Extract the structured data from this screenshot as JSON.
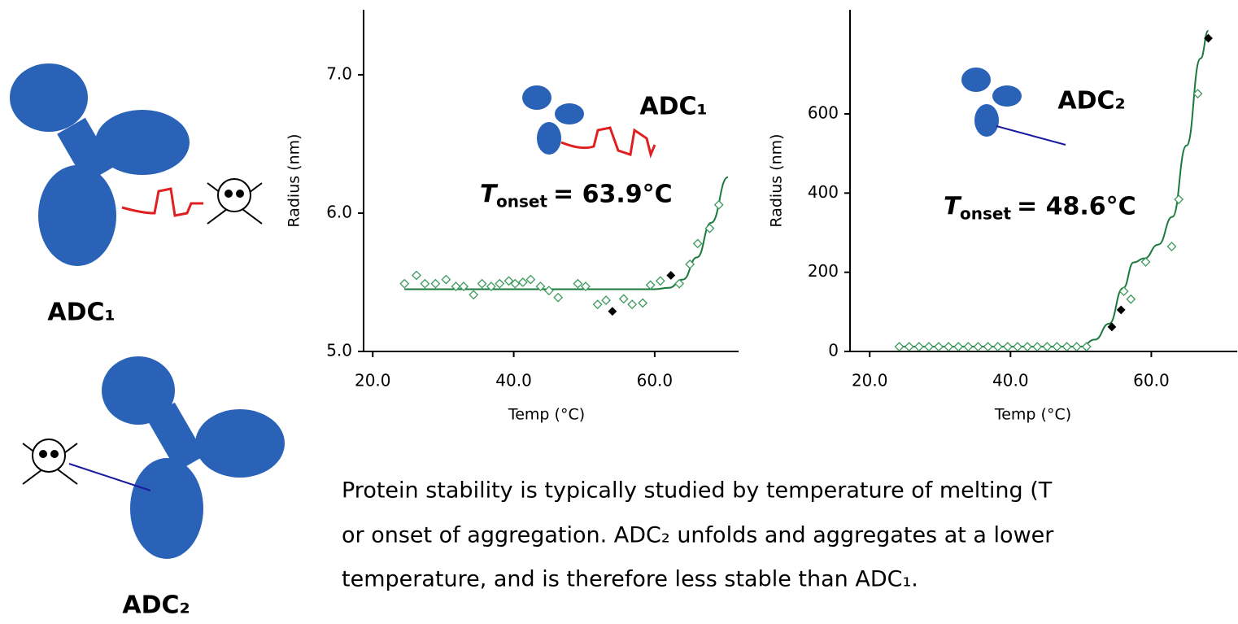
{
  "labels": {
    "adc1": "ADC₁",
    "adc2": "ADC₂"
  },
  "paragraph": [
    "Protein stability is typically studied by temperature of melting (T",
    "or onset of aggregation. ADC₂ unfolds and aggregates at a lower",
    "temperature, and is therefore less stable than ADC₁."
  ],
  "chart_data": [
    {
      "type": "scatter",
      "xlabel": "Temp (°C)",
      "ylabel": "Radius (nm)",
      "label": "ADC₁",
      "onset": {
        "symbol": "T",
        "subscript": "onset",
        "text": "= 63.9°C"
      },
      "xlim": [
        18.7,
        71.9
      ],
      "ylim": [
        5.0,
        7.47
      ],
      "xticks": [
        {
          "value": 20,
          "label": "20.0"
        },
        {
          "value": 40,
          "label": "40.0"
        },
        {
          "value": 60,
          "label": "60.0"
        }
      ],
      "yticks": [
        {
          "value": 5,
          "label": "5.0"
        },
        {
          "value": 6,
          "label": "6.0"
        },
        {
          "value": 7,
          "label": "7.0"
        }
      ],
      "series": [
        {
          "color": "#1a7a3c",
          "marker": "line",
          "x": [
            24.5,
            60,
            62,
            64,
            66,
            68,
            70.4
          ],
          "values": [
            5.45,
            5.45,
            5.46,
            5.52,
            5.68,
            5.93,
            6.26
          ]
        },
        {
          "color": "#3a9a5a",
          "marker": "open-diamond",
          "x": [
            24.5,
            26.2,
            27.4,
            28.9,
            30.4,
            31.8,
            32.9,
            34.3,
            35.5,
            36.8,
            38.0,
            39.3,
            40.2,
            41.3,
            42.4,
            43.8,
            45.0,
            46.3,
            49.1,
            50.2,
            51.9,
            53.1,
            55.6,
            56.8,
            58.3,
            59.4,
            60.8,
            63.5,
            65.0,
            66.1,
            67.8,
            69.1
          ],
          "values": [
            5.49,
            5.55,
            5.49,
            5.49,
            5.52,
            5.47,
            5.47,
            5.41,
            5.49,
            5.47,
            5.49,
            5.51,
            5.49,
            5.5,
            5.52,
            5.47,
            5.44,
            5.39,
            5.49,
            5.47,
            5.34,
            5.37,
            5.38,
            5.34,
            5.35,
            5.48,
            5.51,
            5.49,
            5.63,
            5.78,
            5.89,
            6.06
          ]
        },
        {
          "color": "#000000",
          "marker": "filled-diamond",
          "x": [
            54.0,
            62.3
          ],
          "values": [
            5.29,
            5.55
          ]
        }
      ]
    },
    {
      "type": "scatter",
      "xlabel": "Temp (°C)",
      "ylabel": "Radius (nm)",
      "label": "ADC₂",
      "onset": {
        "symbol": "T",
        "subscript": "onset",
        "text": "= 48.6°C"
      },
      "xlim": [
        17.2,
        72.2
      ],
      "ylim": [
        0,
        863
      ],
      "xticks": [
        {
          "value": 20,
          "label": "20.0"
        },
        {
          "value": 40,
          "label": "40.0"
        },
        {
          "value": 60,
          "label": "60.0"
        }
      ],
      "yticks": [
        0,
        200,
        400,
        600
      ],
      "series": [
        {
          "color": "#1a7a3c",
          "marker": "line",
          "x": [
            24.2,
            50,
            52,
            54,
            56,
            57.5,
            59,
            61,
            63,
            65,
            67,
            68.1
          ],
          "values": [
            12,
            12,
            30,
            70,
            160,
            225,
            235,
            270,
            340,
            520,
            740,
            810
          ]
        },
        {
          "color": "#3a9a5a",
          "marker": "open-diamond",
          "x": [
            24.2,
            25.6,
            27.0,
            28.4,
            29.8,
            31.2,
            32.6,
            34.0,
            35.4,
            36.8,
            38.2,
            39.6,
            41.0,
            42.4,
            43.8,
            45.2,
            46.6,
            48.0,
            49.4,
            50.8,
            56.1,
            57.1,
            59.2,
            62.9,
            63.9,
            66.6
          ],
          "values": [
            12,
            12,
            12,
            12,
            12,
            12,
            12,
            12,
            12,
            12,
            12,
            12,
            12,
            12,
            12,
            12,
            12,
            12,
            12,
            12,
            152,
            132,
            226,
            265,
            384,
            651
          ]
        },
        {
          "color": "#000000",
          "marker": "filled-diamond",
          "x": [
            54.4,
            55.7,
            68.1
          ],
          "values": [
            62,
            105,
            791
          ]
        }
      ]
    }
  ]
}
